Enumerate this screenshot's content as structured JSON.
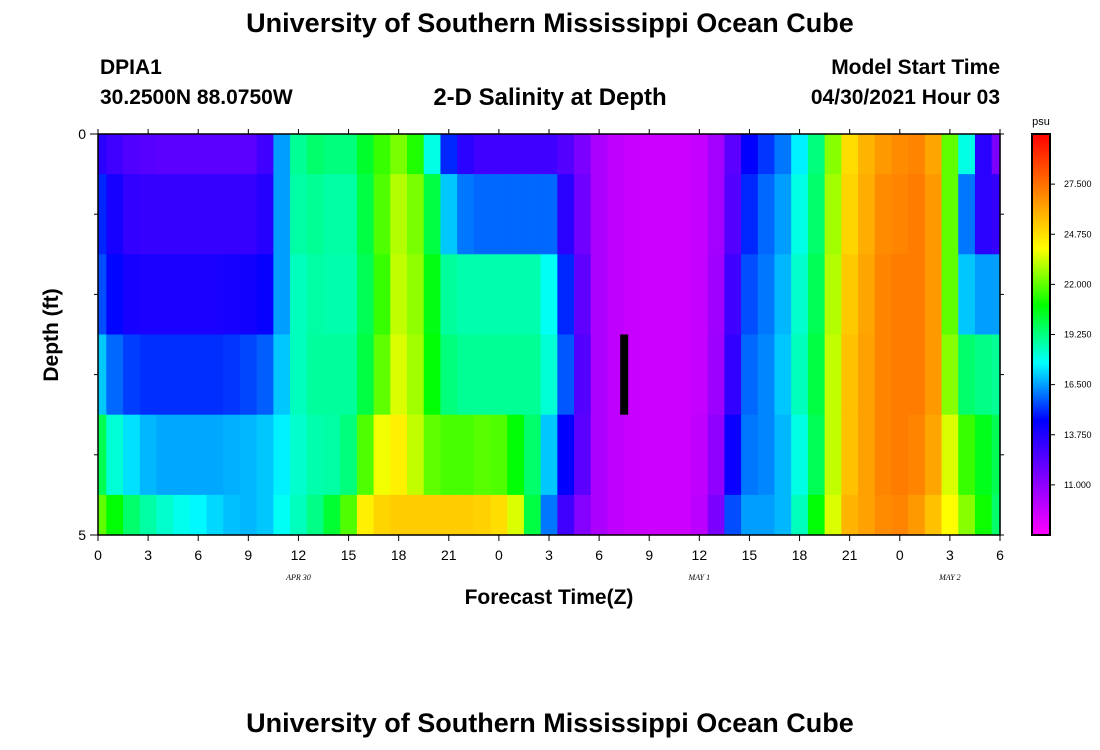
{
  "header": {
    "title_top": "University of Southern Mississippi Ocean Cube",
    "title_bottom": "University of Southern Mississippi Ocean Cube",
    "station_id": "DPIA1",
    "station_coords": "30.2500N  88.0750W",
    "plot_title": "2-D Salinity at Depth",
    "model_start_label": "Model Start Time",
    "model_start_value": "04/30/2021 Hour 03"
  },
  "chart_data": {
    "type": "heatmap",
    "title": "2-D Salinity at Depth",
    "xlabel": "Forecast Time(Z)",
    "ylabel": "Depth (ft)",
    "x_hours": [
      0,
      1,
      2,
      3,
      4,
      5,
      6,
      7,
      8,
      9,
      10,
      11,
      12,
      13,
      14,
      15,
      16,
      17,
      18,
      19,
      20,
      21,
      22,
      23,
      24,
      25,
      26,
      27,
      28,
      29,
      30,
      31,
      32,
      33,
      34,
      35,
      36,
      37,
      38,
      39,
      40,
      41,
      42,
      43,
      44,
      45,
      46,
      47,
      48,
      49,
      50,
      51,
      52,
      53,
      54
    ],
    "x_tick_labels": [
      "0",
      "3",
      "6",
      "9",
      "12",
      "15",
      "18",
      "21",
      "0",
      "3",
      "6",
      "9",
      "12",
      "15",
      "18",
      "21",
      "0",
      "3",
      "6"
    ],
    "date_labels": [
      {
        "text": "APR 30",
        "hour": 12
      },
      {
        "text": "MAY 1",
        "hour": 36
      },
      {
        "text": "MAY 2",
        "hour": 51
      }
    ],
    "y_tick_labels": [
      "0",
      "5"
    ],
    "ylim": [
      0,
      5
    ],
    "depth_layers": [
      {
        "top": 0.0,
        "bottom": 0.5
      },
      {
        "top": 0.5,
        "bottom": 1.5
      },
      {
        "top": 1.5,
        "bottom": 2.5
      },
      {
        "top": 2.5,
        "bottom": 3.5
      },
      {
        "top": 3.5,
        "bottom": 4.5
      },
      {
        "top": 4.5,
        "bottom": 5.0
      }
    ],
    "salinity": [
      [
        13.5,
        13.0,
        12.6,
        12.4,
        12.3,
        12.3,
        12.3,
        12.3,
        12.3,
        12.3,
        13.0,
        16.5,
        19.0,
        19.5,
        19.3,
        19.3,
        20.3,
        21.5,
        22.3,
        21.2,
        18.0,
        15.0,
        13.5,
        13.0,
        13.0,
        13.0,
        13.0,
        13.0,
        12.5,
        11.5,
        10.3,
        9.8,
        9.6,
        9.5,
        9.5,
        9.5,
        9.7,
        10.5,
        12.3,
        14.5,
        15.2,
        16.0,
        17.5,
        19.3,
        22.5,
        24.8,
        25.8,
        26.5,
        26.8,
        27.0,
        26.2,
        22.0,
        18.0,
        13.5,
        11.5
      ],
      [
        15.0,
        14.0,
        13.3,
        13.2,
        13.2,
        13.2,
        13.2,
        13.2,
        13.2,
        13.2,
        13.6,
        16.5,
        18.8,
        19.0,
        18.8,
        18.8,
        20.0,
        21.8,
        23.0,
        22.3,
        20.0,
        17.0,
        16.0,
        15.8,
        15.8,
        15.8,
        15.8,
        15.8,
        13.5,
        11.8,
        10.3,
        9.8,
        9.6,
        9.5,
        9.5,
        9.5,
        9.7,
        10.5,
        12.5,
        15.0,
        15.8,
        16.5,
        18.0,
        19.5,
        22.8,
        25.0,
        26.0,
        26.8,
        27.0,
        27.2,
        26.5,
        22.0,
        16.0,
        13.5,
        13.2
      ],
      [
        15.5,
        14.6,
        14.0,
        13.9,
        13.9,
        13.9,
        13.9,
        13.9,
        14.0,
        14.1,
        14.4,
        16.5,
        18.5,
        18.8,
        18.7,
        18.7,
        19.8,
        21.5,
        23.2,
        22.6,
        20.6,
        18.9,
        18.7,
        18.7,
        18.7,
        18.7,
        18.7,
        17.8,
        15.0,
        12.2,
        10.3,
        9.8,
        9.6,
        9.5,
        9.5,
        9.5,
        9.7,
        10.6,
        13.0,
        15.5,
        16.0,
        16.8,
        18.3,
        19.8,
        23.0,
        25.3,
        26.2,
        27.0,
        27.2,
        27.2,
        26.5,
        22.0,
        17.0,
        16.5,
        16.5
      ],
      [
        17.0,
        15.8,
        15.3,
        15.1,
        15.1,
        15.1,
        15.1,
        15.1,
        15.2,
        15.4,
        15.7,
        17.0,
        18.5,
        18.9,
        18.9,
        18.9,
        20.0,
        22.0,
        23.5,
        22.8,
        20.8,
        19.3,
        19.0,
        19.0,
        19.0,
        19.0,
        19.0,
        18.2,
        15.6,
        12.5,
        10.3,
        9.8,
        9.6,
        9.5,
        9.5,
        9.5,
        9.7,
        10.7,
        13.3,
        15.8,
        16.2,
        17.0,
        18.5,
        20.0,
        23.2,
        25.5,
        26.3,
        27.0,
        27.2,
        27.2,
        26.5,
        22.5,
        19.5,
        19.2,
        19.0
      ],
      [
        19.8,
        18.2,
        17.3,
        16.8,
        16.6,
        16.6,
        16.6,
        16.6,
        16.7,
        16.8,
        17.0,
        17.5,
        18.3,
        18.7,
        18.8,
        19.3,
        21.8,
        23.8,
        24.3,
        23.2,
        22.0,
        21.7,
        21.7,
        21.9,
        21.8,
        20.8,
        19.5,
        17.0,
        14.5,
        12.3,
        10.3,
        9.8,
        9.6,
        9.5,
        9.5,
        9.5,
        9.8,
        11.0,
        14.3,
        16.0,
        16.2,
        16.8,
        18.0,
        19.8,
        23.2,
        25.5,
        26.3,
        27.0,
        27.2,
        27.0,
        26.2,
        23.5,
        21.5,
        20.5,
        19.8
      ],
      [
        22.0,
        20.8,
        19.5,
        18.8,
        18.3,
        17.9,
        17.6,
        17.2,
        16.9,
        16.8,
        17.0,
        17.8,
        18.5,
        19.2,
        20.2,
        21.8,
        24.3,
        25.0,
        25.2,
        25.2,
        25.2,
        25.2,
        25.2,
        25.1,
        24.8,
        23.5,
        20.0,
        16.0,
        13.0,
        11.3,
        10.3,
        9.8,
        9.6,
        9.5,
        9.5,
        9.5,
        9.9,
        11.5,
        15.5,
        16.5,
        16.5,
        16.8,
        18.5,
        20.8,
        23.5,
        25.8,
        26.3,
        26.8,
        27.0,
        26.5,
        25.5,
        24.0,
        22.5,
        21.0,
        19.5
      ]
    ],
    "marker": {
      "hour": 31.5,
      "depth_top": 2.5,
      "depth_bottom": 3.5
    },
    "colorbar": {
      "units": "psu",
      "min": 8.25,
      "max": 30.25,
      "ticks": [
        11.0,
        13.75,
        16.5,
        19.25,
        22.0,
        24.75,
        27.5
      ],
      "tick_labels": [
        "11.000",
        "13.750",
        "16.500",
        "19.250",
        "22.000",
        "24.750",
        "27.500"
      ],
      "colormap": [
        "#ff00ff",
        "#8000ff",
        "#0000ff",
        "#00ffff",
        "#00ff00",
        "#ffff00",
        "#ff8000",
        "#ff0000"
      ]
    }
  }
}
